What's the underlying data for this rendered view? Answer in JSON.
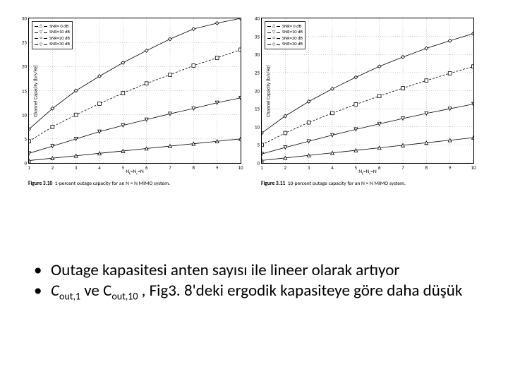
{
  "figure_left": {
    "type": "line",
    "ylabel": "Channel Capacity (b/s/Hz)",
    "xlabel_html": "N<sub>t</sub>=N<sub>r</sub>=N",
    "xlim": [
      1,
      10
    ],
    "ylim": [
      0,
      30
    ],
    "xticks": [
      1,
      2,
      3,
      4,
      5,
      6,
      7,
      8,
      9,
      10
    ],
    "yticks": [
      0,
      5,
      10,
      15,
      20,
      25,
      30
    ],
    "legend": [
      {
        "marker": "△",
        "label": "SNR= 0 dB"
      },
      {
        "marker": "▽",
        "label": "SNR=10 dB"
      },
      {
        "marker": "□",
        "label": "SNR=20 dB"
      },
      {
        "marker": "◇",
        "label": "SNR=30 dB"
      }
    ],
    "series": [
      {
        "name": "snr0",
        "marker": "tri-up",
        "style": "solid",
        "data": [
          [
            1,
            0.5
          ],
          [
            2,
            1.0
          ],
          [
            3,
            1.5
          ],
          [
            4,
            2.0
          ],
          [
            5,
            2.5
          ],
          [
            6,
            3.0
          ],
          [
            7,
            3.5
          ],
          [
            8,
            4.0
          ],
          [
            9,
            4.5
          ],
          [
            10,
            5.0
          ]
        ]
      },
      {
        "name": "snr10",
        "marker": "tri-down",
        "style": "solid",
        "data": [
          [
            1,
            2.0
          ],
          [
            2,
            3.5
          ],
          [
            3,
            5.0
          ],
          [
            4,
            6.5
          ],
          [
            5,
            7.8
          ],
          [
            6,
            9.0
          ],
          [
            7,
            10.2
          ],
          [
            8,
            11.3
          ],
          [
            9,
            12.5
          ],
          [
            10,
            13.5
          ]
        ]
      },
      {
        "name": "snr20",
        "marker": "square",
        "style": "dashed",
        "data": [
          [
            1,
            4.5
          ],
          [
            2,
            7.5
          ],
          [
            3,
            10.0
          ],
          [
            4,
            12.3
          ],
          [
            5,
            14.5
          ],
          [
            6,
            16.5
          ],
          [
            7,
            18.3
          ],
          [
            8,
            20.2
          ],
          [
            9,
            21.8
          ],
          [
            10,
            23.5
          ]
        ]
      },
      {
        "name": "snr30",
        "marker": "diamond",
        "style": "solid",
        "data": [
          [
            1,
            7.0
          ],
          [
            2,
            11.3
          ],
          [
            3,
            15.0
          ],
          [
            4,
            18.0
          ],
          [
            5,
            20.8
          ],
          [
            6,
            23.3
          ],
          [
            7,
            25.7
          ],
          [
            8,
            27.8
          ],
          [
            9,
            29.0
          ],
          [
            10,
            30.0
          ]
        ]
      }
    ],
    "caption_figure": "Figure 3.10",
    "caption_text": "1-percent outage capacity for an N × N MIMO system."
  },
  "figure_right": {
    "type": "line",
    "ylabel": "Channel Capacity (b/s/Hz)",
    "xlabel_html": "N<sub>t</sub>=N<sub>r</sub>=N",
    "xlim": [
      1,
      10
    ],
    "ylim": [
      0,
      40
    ],
    "xticks": [
      1,
      2,
      3,
      4,
      5,
      6,
      7,
      8,
      9,
      10
    ],
    "yticks": [
      0,
      5,
      10,
      15,
      20,
      25,
      30,
      35,
      40
    ],
    "legend": [
      {
        "marker": "△",
        "label": "SNR= 0 dB"
      },
      {
        "marker": "▽",
        "label": "SNR=10 dB"
      },
      {
        "marker": "□",
        "label": "SNR=20 dB"
      },
      {
        "marker": "◇",
        "label": "SNR=30 dB"
      }
    ],
    "series": [
      {
        "name": "snr0",
        "marker": "tri-up",
        "style": "solid",
        "data": [
          [
            1,
            0.7
          ],
          [
            2,
            1.4
          ],
          [
            3,
            2.1
          ],
          [
            4,
            2.8
          ],
          [
            5,
            3.5
          ],
          [
            6,
            4.2
          ],
          [
            7,
            4.9
          ],
          [
            8,
            5.6
          ],
          [
            9,
            6.3
          ],
          [
            10,
            7.0
          ]
        ]
      },
      {
        "name": "snr10",
        "marker": "tri-down",
        "style": "solid",
        "data": [
          [
            1,
            2.5
          ],
          [
            2,
            4.3
          ],
          [
            3,
            6.0
          ],
          [
            4,
            7.7
          ],
          [
            5,
            9.3
          ],
          [
            6,
            10.8
          ],
          [
            7,
            12.3
          ],
          [
            8,
            13.7
          ],
          [
            9,
            15.0
          ],
          [
            10,
            16.3
          ]
        ]
      },
      {
        "name": "snr20",
        "marker": "square",
        "style": "dashed",
        "data": [
          [
            1,
            5.0
          ],
          [
            2,
            8.3
          ],
          [
            3,
            11.2
          ],
          [
            4,
            13.8
          ],
          [
            5,
            16.2
          ],
          [
            6,
            18.5
          ],
          [
            7,
            20.7
          ],
          [
            8,
            22.8
          ],
          [
            9,
            24.8
          ],
          [
            10,
            26.7
          ]
        ]
      },
      {
        "name": "snr30",
        "marker": "diamond",
        "style": "solid",
        "data": [
          [
            1,
            8.3
          ],
          [
            2,
            13.0
          ],
          [
            3,
            17.0
          ],
          [
            4,
            20.5
          ],
          [
            5,
            23.7
          ],
          [
            6,
            26.7
          ],
          [
            7,
            29.3
          ],
          [
            8,
            31.7
          ],
          [
            9,
            33.8
          ],
          [
            10,
            35.8
          ]
        ]
      }
    ],
    "caption_figure": "Figure 3.11",
    "caption_text": "10-percent outage capacity for an N × N MIMO system."
  },
  "bullets": {
    "b1": "Outage kapasitesi anten sayısı ile lineer olarak artıyor",
    "b2_pre": "C",
    "b2_sub1": "out,1",
    "b2_mid1": " ve C",
    "b2_sub2": "out,10",
    "b2_mid2": " , Fig3. 8'deki ergodik kapasiteye göre daha düşük"
  },
  "colors": {
    "line": "#000000",
    "grid": "#999999",
    "background": "#ffffff"
  }
}
